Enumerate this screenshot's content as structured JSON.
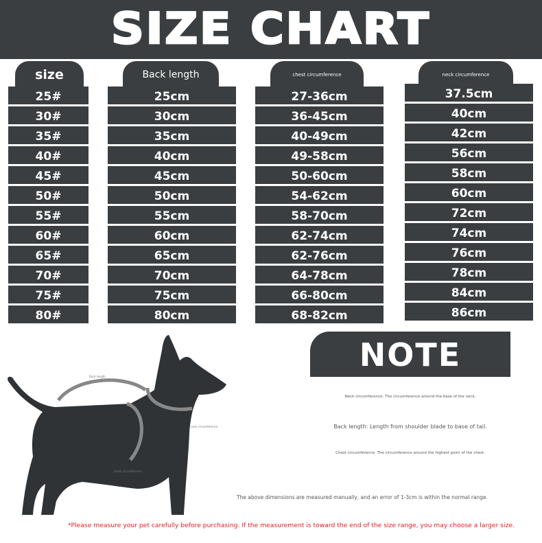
{
  "title": "SIZE CHART",
  "table": {
    "headers": [
      "size",
      "Back length",
      "chest circumference",
      "neck circumference"
    ],
    "sizes": [
      "25#",
      "30#",
      "35#",
      "40#",
      "45#",
      "50#",
      "55#",
      "60#",
      "65#",
      "70#",
      "75#",
      "80#"
    ],
    "back_length": [
      "25cm",
      "30cm",
      "35cm",
      "40cm",
      "45cm",
      "50cm",
      "55cm",
      "60cm",
      "65cm",
      "70cm",
      "75cm",
      "80cm"
    ],
    "chest": [
      "27-36cm",
      "36-45cm",
      "40-49cm",
      "49-58cm",
      "50-60cm",
      "54-62cm",
      "58-70cm",
      "62-74cm",
      "62-76cm",
      "64-78cm",
      "66-80cm",
      "68-82cm"
    ],
    "neck": [
      "37.5cm",
      "40cm",
      "42cm",
      "56cm",
      "58cm",
      "60cm",
      "72cm",
      "74cm",
      "76cm",
      "78cm",
      "84cm",
      "86cm"
    ]
  },
  "diagram": {
    "labels": {
      "back": "Back length",
      "neck": "neck circumference",
      "chest": "chest circumference"
    }
  },
  "note": {
    "title": "NOTE",
    "neck": "Neck circumference: The circumference around the base of the neck.",
    "back": "Back length: Length from shoulder blade to base of tail.",
    "chest": "Chest circumference: The circumference around the highest point of the chest.",
    "error": "The above dimensions are measured manually, and an error of 1-3cm is within the normal range."
  },
  "footer": "*Please measure your pet carefully before purchasing. If the measurement is toward the end of the size range, you may choose a larger size.",
  "colors": {
    "dark": "#3a3e40",
    "warning": "#e0202a",
    "arrow": "#888888"
  }
}
